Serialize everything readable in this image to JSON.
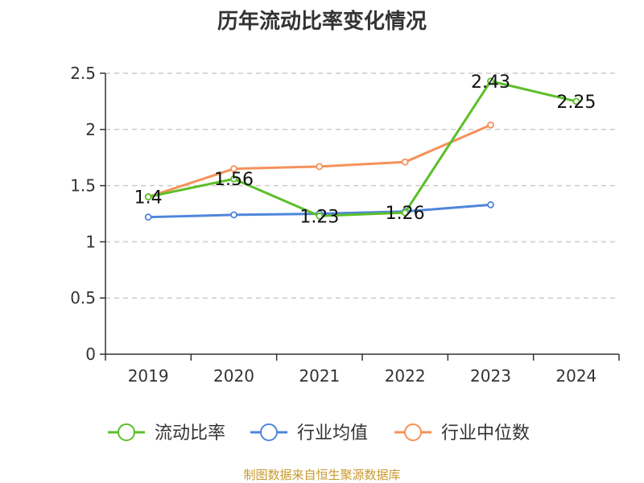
{
  "title": "历年流动比率变化情况",
  "footer": "制图数据来自恒生聚源数据库",
  "colors": {
    "流动比率": "#5cbf2a",
    "行业均值": "#4f86db",
    "行业中位数": "#f5925a",
    "grid": "#cccccc",
    "axis": "#333333"
  },
  "chart_data": {
    "type": "line",
    "title": "历年流动比率变化情况",
    "categories": [
      "2019",
      "2020",
      "2021",
      "2022",
      "2023",
      "2024"
    ],
    "ylim": [
      0,
      2.5
    ],
    "yticks": [
      0,
      0.5,
      1,
      1.5,
      2,
      2.5
    ],
    "grid": true,
    "legend_position": "bottom",
    "series": [
      {
        "name": "流动比率",
        "values": [
          1.4,
          1.56,
          1.23,
          1.26,
          2.43,
          2.25
        ],
        "labels": [
          "1.4",
          "1.56",
          "1.23",
          "1.26",
          "2.43",
          "2.25"
        ]
      },
      {
        "name": "行业均值",
        "values": [
          1.22,
          1.24,
          1.25,
          1.27,
          1.33,
          null
        ]
      },
      {
        "name": "行业中位数",
        "values": [
          1.4,
          1.65,
          1.67,
          1.71,
          2.04,
          null
        ]
      }
    ]
  }
}
